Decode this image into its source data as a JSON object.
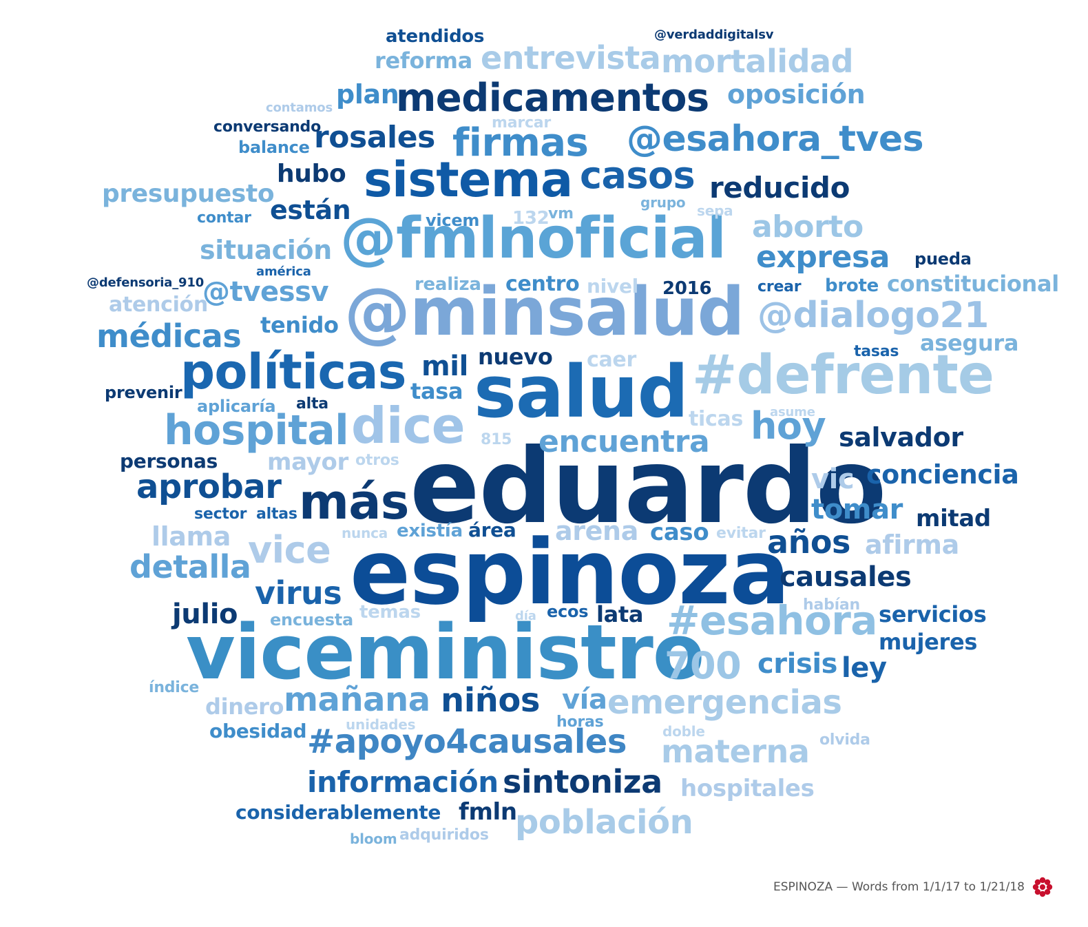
{
  "caption": "ESPINOZA — Words from 1/1/17 to 1/21/18",
  "logo_color": "#c8102e",
  "words": [
    {
      "text": "eduardo",
      "color": "#0c3a73"
    },
    {
      "text": "espinoza",
      "color": "#0c4d97"
    },
    {
      "text": "viceministro",
      "color": "#3a8fc6"
    },
    {
      "text": "@minsalud",
      "color": "#7ba7d8"
    },
    {
      "text": "salud",
      "color": "#1c6bb3"
    },
    {
      "text": "@fmlnoficial",
      "color": "#5aa4d6"
    },
    {
      "text": "#defrente",
      "color": "#a5cbe6"
    },
    {
      "text": "políticas",
      "color": "#1a67b0"
    },
    {
      "text": "dice",
      "color": "#a0c4e8"
    },
    {
      "text": "sistema",
      "color": "#0f5aa6"
    },
    {
      "text": "medicamentos",
      "color": "#0c3a73"
    },
    {
      "text": "hospital",
      "color": "#5fa2d6"
    },
    {
      "text": "más",
      "color": "#0c3a73"
    },
    {
      "text": "#esahora",
      "color": "#8fc0e3"
    },
    {
      "text": "firmas",
      "color": "#3f8dca"
    },
    {
      "text": "@esahora_tves",
      "color": "#3f8dca"
    },
    {
      "text": "casos",
      "color": "#1a63ab"
    },
    {
      "text": "@dialogo21",
      "color": "#9cc2e6"
    },
    {
      "text": "vice",
      "color": "#aecbe9"
    },
    {
      "text": "700",
      "color": "#9cc6e6"
    },
    {
      "text": "emergencias",
      "color": "#a8cbe8"
    },
    {
      "text": "#apoyo4causales",
      "color": "#3f86c4"
    },
    {
      "text": "entrevista",
      "color": "#a8cbe8"
    },
    {
      "text": "mortalidad",
      "color": "#a8cbe8"
    },
    {
      "text": "rosales",
      "color": "#0f4f93"
    },
    {
      "text": "reducido",
      "color": "#0c3a73"
    },
    {
      "text": "aborto",
      "color": "#9cc6e6"
    },
    {
      "text": "expresa",
      "color": "#3f8dca"
    },
    {
      "text": "médicas",
      "color": "#3f8dca"
    },
    {
      "text": "hoy",
      "color": "#5fa2d6"
    },
    {
      "text": "encuentra",
      "color": "#5fa2d6"
    },
    {
      "text": "aprobar",
      "color": "#0f4f93"
    },
    {
      "text": "detalla",
      "color": "#5fa2d6"
    },
    {
      "text": "virus",
      "color": "#1a63ab"
    },
    {
      "text": "niños",
      "color": "#0f4f93"
    },
    {
      "text": "mañana",
      "color": "#5fa2d6"
    },
    {
      "text": "sintoniza",
      "color": "#0c3a73"
    },
    {
      "text": "información",
      "color": "#1a63ab"
    },
    {
      "text": "población",
      "color": "#a8cbe8"
    },
    {
      "text": "materna",
      "color": "#a8cbe8"
    },
    {
      "text": "causales",
      "color": "#0c3a73"
    },
    {
      "text": "años",
      "color": "#0f4f93"
    },
    {
      "text": "crisis",
      "color": "#3f8dca"
    },
    {
      "text": "ley",
      "color": "#1a63ab"
    },
    {
      "text": "oposición",
      "color": "#5fa2d6"
    },
    {
      "text": "plan",
      "color": "#3f8dca"
    },
    {
      "text": "presupuesto",
      "color": "#7ab3dc"
    },
    {
      "text": "están",
      "color": "#0f4f93"
    },
    {
      "text": "hubo",
      "color": "#0c3a73"
    },
    {
      "text": "situación",
      "color": "#7ab3dc"
    },
    {
      "text": "@tvessv",
      "color": "#5fa2d6"
    },
    {
      "text": "mil",
      "color": "#0f4f93"
    },
    {
      "text": "tasa",
      "color": "#3f8dca"
    },
    {
      "text": "salvador",
      "color": "#0c3a73"
    },
    {
      "text": "conciencia",
      "color": "#1a63ab"
    },
    {
      "text": "vic",
      "color": "#aecbe9"
    },
    {
      "text": "tomar",
      "color": "#3f8dca"
    },
    {
      "text": "mitad",
      "color": "#0c3a73"
    },
    {
      "text": "afirma",
      "color": "#aecbe9"
    },
    {
      "text": "llama",
      "color": "#aecbe9"
    },
    {
      "text": "arena",
      "color": "#aecbe9"
    },
    {
      "text": "caso",
      "color": "#3f8dca"
    },
    {
      "text": "julio",
      "color": "#0c3a73"
    },
    {
      "text": "lata",
      "color": "#0c3a73"
    },
    {
      "text": "servicios",
      "color": "#1a63ab"
    },
    {
      "text": "mujeres",
      "color": "#1a63ab"
    },
    {
      "text": "vía",
      "color": "#5fa2d6"
    },
    {
      "text": "fmln",
      "color": "#0c3a73"
    },
    {
      "text": "hospitales",
      "color": "#aecbe9"
    },
    {
      "text": "considerablemente",
      "color": "#1a63ab"
    },
    {
      "text": "obesidad",
      "color": "#3f8dca"
    },
    {
      "text": "dinero",
      "color": "#aecbe9"
    },
    {
      "text": "constitucional",
      "color": "#7ab3dc"
    },
    {
      "text": "asegura",
      "color": "#7ab3dc"
    },
    {
      "text": "nuevo",
      "color": "#0c3a73"
    },
    {
      "text": "tenido",
      "color": "#3f8dca"
    },
    {
      "text": "mayor",
      "color": "#aecbe9"
    },
    {
      "text": "atendidos",
      "color": "#0f4f93"
    },
    {
      "text": "reforma",
      "color": "#7ab3dc"
    },
    {
      "text": "@verdaddigitalsv",
      "color": "#0c3a73"
    },
    {
      "text": "contamos",
      "color": "#aecbe9"
    },
    {
      "text": "conversando",
      "color": "#0c3a73"
    },
    {
      "text": "marcar",
      "color": "#bcd6ee"
    },
    {
      "text": "balance",
      "color": "#3f8dca"
    },
    {
      "text": "grupo",
      "color": "#7ab3dc"
    },
    {
      "text": "sepa",
      "color": "#bcd6ee"
    },
    {
      "text": "contar",
      "color": "#3f8dca"
    },
    {
      "text": "vicem",
      "color": "#3f8dca"
    },
    {
      "text": "132",
      "color": "#bcd6ee"
    },
    {
      "text": "vm",
      "color": "#7ab3dc"
    },
    {
      "text": "pueda",
      "color": "#0c3a73"
    },
    {
      "text": "américa",
      "color": "#1a63ab"
    },
    {
      "text": "@defensoria_910",
      "color": "#0c3a73"
    },
    {
      "text": "realiza",
      "color": "#7ab3dc"
    },
    {
      "text": "centro",
      "color": "#3f8dca"
    },
    {
      "text": "nivel",
      "color": "#bcd6ee"
    },
    {
      "text": "2016",
      "color": "#0c3a73"
    },
    {
      "text": "crear",
      "color": "#1a63ab"
    },
    {
      "text": "brote",
      "color": "#3f8dca"
    },
    {
      "text": "atención",
      "color": "#aecbe9"
    },
    {
      "text": "caer",
      "color": "#bcd6ee"
    },
    {
      "text": "tasas",
      "color": "#1a63ab"
    },
    {
      "text": "prevenir",
      "color": "#0c3a73"
    },
    {
      "text": "aplicaría",
      "color": "#5fa2d6"
    },
    {
      "text": "alta",
      "color": "#0c3a73"
    },
    {
      "text": "ticas",
      "color": "#bcd6ee"
    },
    {
      "text": "asume",
      "color": "#bcd6ee"
    },
    {
      "text": "815",
      "color": "#bcd6ee"
    },
    {
      "text": "personas",
      "color": "#0c3a73"
    },
    {
      "text": "otros",
      "color": "#bcd6ee"
    },
    {
      "text": "sector",
      "color": "#1a63ab"
    },
    {
      "text": "altas",
      "color": "#1a63ab"
    },
    {
      "text": "nunca",
      "color": "#bcd6ee"
    },
    {
      "text": "existía",
      "color": "#5fa2d6"
    },
    {
      "text": "área",
      "color": "#0f4f93"
    },
    {
      "text": "evitar",
      "color": "#bcd6ee"
    },
    {
      "text": "encuesta",
      "color": "#7ab3dc"
    },
    {
      "text": "temas",
      "color": "#bcd6ee"
    },
    {
      "text": "día",
      "color": "#bcd6ee"
    },
    {
      "text": "ecos",
      "color": "#1a63ab"
    },
    {
      "text": "habían",
      "color": "#aecbe9"
    },
    {
      "text": "índice",
      "color": "#7ab3dc"
    },
    {
      "text": "unidades",
      "color": "#bcd6ee"
    },
    {
      "text": "horas",
      "color": "#5fa2d6"
    },
    {
      "text": "doble",
      "color": "#bcd6ee"
    },
    {
      "text": "olvida",
      "color": "#aecbe9"
    },
    {
      "text": "bloom",
      "color": "#7ab3dc"
    },
    {
      "text": "adquiridos",
      "color": "#aecbe9"
    }
  ]
}
